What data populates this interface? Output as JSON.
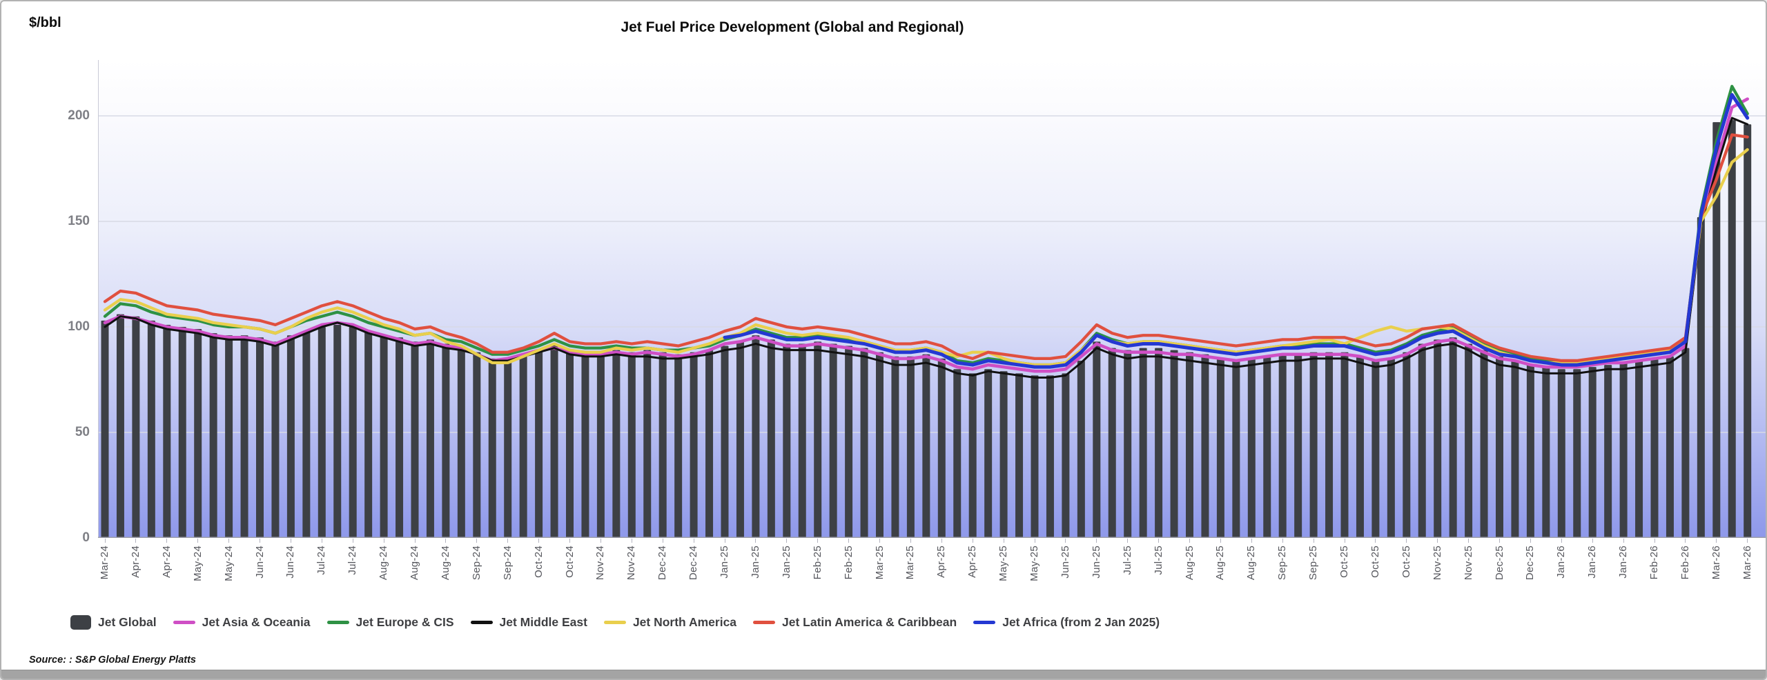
{
  "page": {
    "unit_label": "$/bbl",
    "title": "Jet Fuel Price Development (Global and Regional)",
    "source": "Source: : S&P Global Energy Platts"
  },
  "chart_data": {
    "type": "combo",
    "title": "Jet Fuel Price Development (Global and Regional)",
    "ylabel": "$/bbl",
    "xlabel": "",
    "x_unit": "weekly prices, Mar 2024 - Mar 2026",
    "grid": "horizontal",
    "legend_position": "bottom",
    "ylim": [
      0,
      226
    ],
    "y_ticks": [
      0,
      50,
      100,
      150,
      200
    ],
    "points_per_tick": 2,
    "x_tick_labels": [
      "Mar-24",
      "Apr-24",
      "Apr-24",
      "May-24",
      "May-24",
      "Jun-24",
      "Jun-24",
      "Jul-24",
      "Jul-24",
      "Aug-24",
      "Aug-24",
      "Aug-24",
      "Sep-24",
      "Sep-24",
      "Oct-24",
      "Oct-24",
      "Nov-24",
      "Nov-24",
      "Dec-24",
      "Dec-24",
      "Jan-25",
      "Jan-25",
      "Jan-25",
      "Feb-25",
      "Feb-25",
      "Mar-25",
      "Mar-25",
      "Apr-25",
      "Apr-25",
      "May-25",
      "May-25",
      "Jun-25",
      "Jun-25",
      "Jul-25",
      "Jul-25",
      "Aug-25",
      "Aug-25",
      "Aug-25",
      "Sep-25",
      "Sep-25",
      "Oct-25",
      "Oct-25",
      "Oct-25",
      "Nov-25",
      "Nov-25",
      "Dec-25",
      "Dec-25",
      "Jan-26",
      "Jan-26",
      "Jan-26",
      "Feb-26",
      "Feb-26",
      "Mar-26",
      "Mar-26"
    ],
    "series": [
      {
        "name": "Jet Global",
        "type": "bar",
        "color": "#3d4045",
        "values": [
          103,
          106,
          105,
          103,
          101,
          100,
          99,
          97,
          96,
          96,
          95,
          93,
          96,
          98,
          100,
          101,
          100,
          98,
          96,
          95,
          93,
          94,
          92,
          91,
          88,
          85,
          85,
          87,
          89,
          92,
          89,
          88,
          88,
          89,
          88,
          89,
          88,
          87,
          88,
          89,
          91,
          93,
          96,
          94,
          92,
          92,
          93,
          92,
          91,
          90,
          88,
          86,
          86,
          87,
          85,
          80,
          78,
          80,
          79,
          78,
          77,
          77,
          78,
          84,
          93,
          90,
          89,
          90,
          90,
          89,
          88,
          87,
          85,
          84,
          85,
          86,
          87,
          87,
          88,
          88,
          88,
          86,
          84,
          85,
          88,
          92,
          94,
          95,
          92,
          89,
          86,
          84,
          82,
          81,
          80,
          80,
          81,
          82,
          83,
          84,
          85,
          86,
          90,
          152,
          197,
          198,
          196
        ]
      },
      {
        "name": "Jet Asia & Oceania",
        "type": "line",
        "color": "#cf4fc5",
        "values": [
          102,
          105,
          104,
          102,
          100,
          99,
          98,
          96,
          95,
          95,
          94,
          92,
          95,
          98,
          101,
          102,
          101,
          98,
          96,
          94,
          92,
          93,
          91,
          90,
          87,
          84,
          85,
          87,
          89,
          90,
          88,
          87,
          87,
          88,
          87,
          88,
          87,
          86,
          87,
          89,
          92,
          93,
          95,
          93,
          91,
          91,
          92,
          91,
          90,
          89,
          87,
          85,
          85,
          86,
          84,
          81,
          80,
          82,
          81,
          80,
          79,
          79,
          80,
          86,
          92,
          89,
          88,
          88,
          88,
          87,
          87,
          86,
          85,
          84,
          85,
          86,
          87,
          87,
          87,
          87,
          87,
          86,
          84,
          85,
          87,
          91,
          93,
          94,
          91,
          88,
          85,
          84,
          82,
          81,
          81,
          81,
          82,
          83,
          83,
          84,
          85,
          86,
          91,
          150,
          178,
          204,
          208
        ]
      },
      {
        "name": "Jet Europe & CIS",
        "type": "line",
        "color": "#2e9144",
        "values": [
          105,
          111,
          110,
          107,
          105,
          104,
          103,
          101,
          100,
          100,
          99,
          97,
          100,
          103,
          105,
          107,
          105,
          102,
          100,
          98,
          96,
          97,
          94,
          93,
          90,
          87,
          87,
          89,
          91,
          94,
          91,
          90,
          90,
          91,
          90,
          90,
          89,
          89,
          90,
          91,
          94,
          96,
          99,
          97,
          95,
          95,
          96,
          95,
          94,
          93,
          91,
          89,
          89,
          90,
          88,
          84,
          83,
          85,
          84,
          83,
          82,
          82,
          83,
          89,
          97,
          94,
          92,
          93,
          93,
          92,
          91,
          90,
          89,
          88,
          89,
          90,
          91,
          91,
          92,
          92,
          92,
          90,
          88,
          89,
          92,
          96,
          98,
          100,
          96,
          92,
          89,
          87,
          85,
          84,
          83,
          83,
          84,
          85,
          86,
          87,
          88,
          89,
          94,
          155,
          188,
          214,
          201
        ]
      },
      {
        "name": "Jet Middle East",
        "type": "line",
        "color": "#111111",
        "values": [
          100,
          105,
          104,
          101,
          99,
          98,
          97,
          95,
          94,
          94,
          93,
          91,
          94,
          97,
          100,
          102,
          100,
          97,
          95,
          93,
          91,
          92,
          90,
          89,
          87,
          84,
          84,
          86,
          88,
          90,
          87,
          86,
          86,
          87,
          86,
          86,
          85,
          85,
          86,
          87,
          89,
          90,
          92,
          90,
          89,
          89,
          89,
          88,
          87,
          86,
          84,
          82,
          82,
          83,
          81,
          78,
          77,
          79,
          78,
          77,
          76,
          76,
          77,
          83,
          90,
          87,
          85,
          86,
          86,
          85,
          84,
          83,
          82,
          81,
          82,
          83,
          84,
          84,
          85,
          85,
          85,
          83,
          81,
          82,
          85,
          89,
          91,
          92,
          89,
          85,
          82,
          81,
          79,
          78,
          78,
          78,
          79,
          80,
          80,
          81,
          82,
          83,
          88,
          148,
          175,
          199,
          196
        ]
      },
      {
        "name": "Jet North America",
        "type": "line",
        "color": "#e9cf4d",
        "values": [
          108,
          113,
          112,
          109,
          106,
          105,
          104,
          102,
          101,
          100,
          99,
          97,
          100,
          104,
          107,
          109,
          107,
          104,
          101,
          99,
          96,
          97,
          93,
          91,
          87,
          83,
          83,
          86,
          89,
          92,
          89,
          88,
          88,
          90,
          89,
          90,
          89,
          88,
          90,
          92,
          95,
          97,
          101,
          99,
          97,
          96,
          97,
          96,
          95,
          93,
          91,
          89,
          89,
          90,
          88,
          86,
          88,
          88,
          85,
          83,
          82,
          82,
          83,
          89,
          96,
          93,
          92,
          93,
          93,
          92,
          91,
          90,
          89,
          88,
          89,
          90,
          91,
          92,
          93,
          94,
          92,
          95,
          98,
          100,
          98,
          99,
          100,
          99,
          95,
          91,
          88,
          86,
          84,
          83,
          83,
          83,
          84,
          85,
          86,
          87,
          88,
          89,
          93,
          150,
          162,
          178,
          184
        ]
      },
      {
        "name": "Jet Latin America & Caribbean",
        "type": "line",
        "color": "#e0503f",
        "values": [
          112,
          117,
          116,
          113,
          110,
          109,
          108,
          106,
          105,
          104,
          103,
          101,
          104,
          107,
          110,
          112,
          110,
          107,
          104,
          102,
          99,
          100,
          97,
          95,
          92,
          88,
          88,
          90,
          93,
          97,
          93,
          92,
          92,
          93,
          92,
          93,
          92,
          91,
          93,
          95,
          98,
          100,
          104,
          102,
          100,
          99,
          100,
          99,
          98,
          96,
          94,
          92,
          92,
          93,
          91,
          87,
          85,
          88,
          87,
          86,
          85,
          85,
          86,
          93,
          101,
          97,
          95,
          96,
          96,
          95,
          94,
          93,
          92,
          91,
          92,
          93,
          94,
          94,
          95,
          95,
          95,
          93,
          91,
          92,
          95,
          99,
          100,
          101,
          97,
          93,
          90,
          88,
          86,
          85,
          84,
          84,
          85,
          86,
          87,
          88,
          89,
          90,
          95,
          152,
          170,
          191,
          190
        ]
      },
      {
        "name": "Jet Africa (from 2 Jan 2025)",
        "type": "line",
        "color": "#2438d2",
        "values": [
          null,
          null,
          null,
          null,
          null,
          null,
          null,
          null,
          null,
          null,
          null,
          null,
          null,
          null,
          null,
          null,
          null,
          null,
          null,
          null,
          null,
          null,
          null,
          null,
          null,
          null,
          null,
          null,
          null,
          null,
          null,
          null,
          null,
          null,
          null,
          null,
          null,
          null,
          null,
          null,
          95,
          96,
          98,
          96,
          94,
          94,
          95,
          94,
          93,
          92,
          90,
          88,
          88,
          89,
          87,
          83,
          82,
          84,
          83,
          82,
          81,
          81,
          82,
          88,
          96,
          93,
          91,
          92,
          92,
          91,
          90,
          89,
          88,
          87,
          88,
          89,
          90,
          90,
          91,
          91,
          91,
          89,
          87,
          88,
          91,
          95,
          97,
          98,
          94,
          90,
          87,
          86,
          84,
          83,
          82,
          82,
          83,
          84,
          85,
          86,
          87,
          88,
          93,
          153,
          185,
          210,
          199
        ]
      }
    ]
  }
}
